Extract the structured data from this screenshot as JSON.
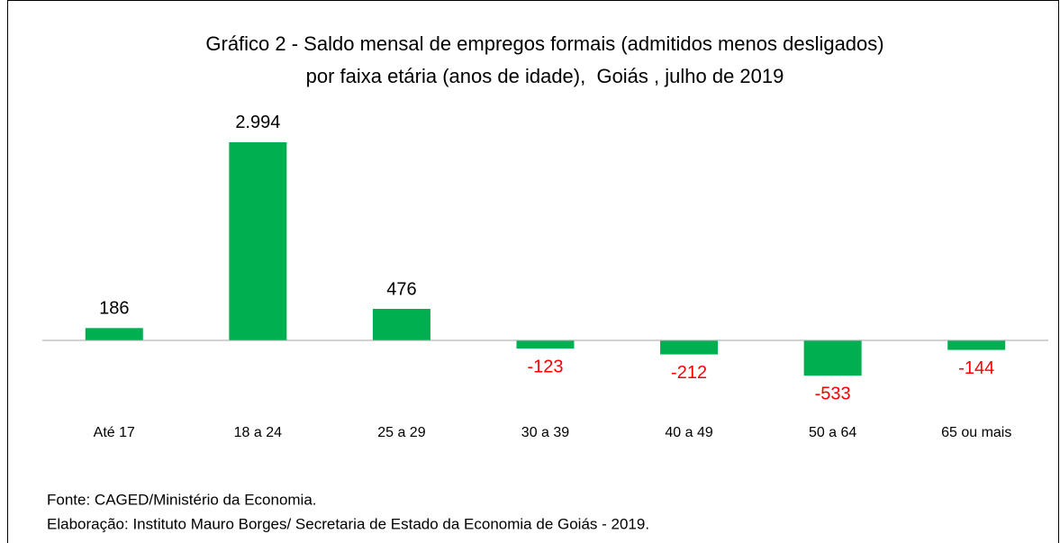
{
  "chart_data": {
    "type": "bar",
    "title": "Gráfico 2 - Saldo mensal de empregos formais (admitidos menos desligados)",
    "subtitle": "por faixa etária (anos de idade),  Goiás , julho de 2019",
    "categories": [
      "Até 17",
      "18 a 24",
      "25 a 29",
      "30 a 39",
      "40 a 49",
      "50 a 64",
      "65 ou mais"
    ],
    "values": [
      186,
      2994,
      476,
      -123,
      -212,
      -533,
      -144
    ],
    "value_labels": [
      "186",
      "2.994",
      "476",
      "-123",
      "-212",
      "-533",
      "-144"
    ],
    "color": "#00b050",
    "label_color": "#000000",
    "negative_label_color": "#ff0000",
    "ylim": [
      -1000,
      3200
    ],
    "notes": [
      "Fonte: CAGED/Ministério da Economia.",
      "Elaboração: Instituto Mauro Borges/ Secretaria de Estado da Economia de Goiás - 2019."
    ]
  }
}
